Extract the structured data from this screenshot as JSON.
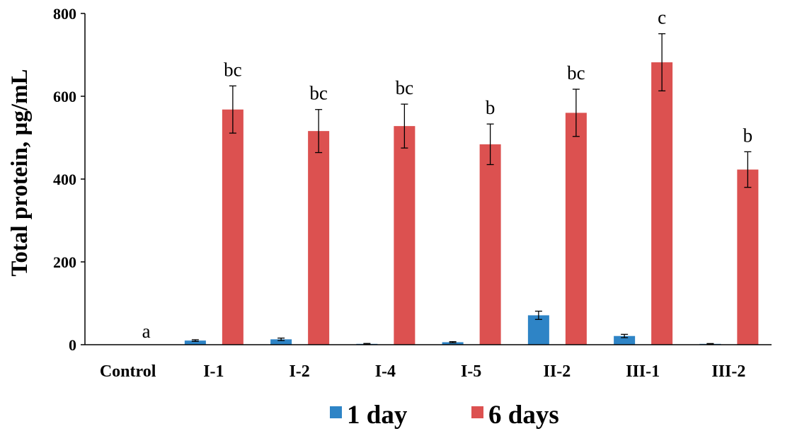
{
  "chart_data": {
    "type": "bar",
    "title": "",
    "xlabel": "",
    "ylabel": "Total protein, µg/mL",
    "ylim": [
      0,
      800
    ],
    "yticks": [
      "0",
      "200",
      "400",
      "600",
      "800"
    ],
    "grid": false,
    "legend_position": "bottom",
    "categories": [
      "Control",
      "I-1",
      "I-2",
      "I-4",
      "I-5",
      "II-2",
      "III-1",
      "III-2"
    ],
    "series": [
      {
        "name": "1 day",
        "color": "#2e84c6",
        "values": [
          0,
          10,
          13,
          2,
          6,
          71,
          21,
          2
        ],
        "errors": [
          0,
          2,
          3,
          1,
          1.5,
          10,
          4,
          0.8
        ]
      },
      {
        "name": "6 days",
        "color": "#dc5150",
        "values": [
          0,
          568,
          516,
          528,
          484,
          560,
          682,
          423
        ],
        "errors": [
          0,
          57,
          52,
          53,
          49,
          57,
          69,
          43
        ]
      }
    ],
    "annotations": [
      "a",
      "bc",
      "bc",
      "bc",
      "b",
      "bc",
      "c",
      "b"
    ]
  }
}
